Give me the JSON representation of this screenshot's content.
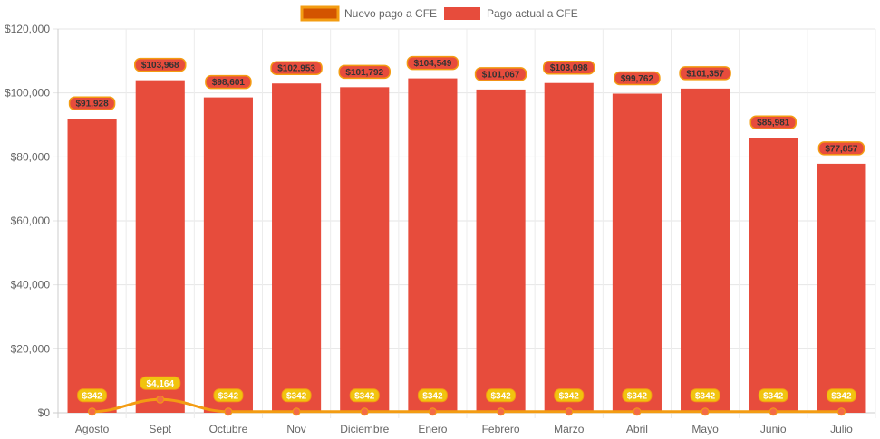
{
  "chart_data": {
    "type": "bar",
    "categories": [
      "Agosto",
      "Sept",
      "Octubre",
      "Nov",
      "Diciembre",
      "Enero",
      "Febrero",
      "Marzo",
      "Abril",
      "Mayo",
      "Junio",
      "Julio"
    ],
    "series": [
      {
        "name": "Nuevo pago a CFE",
        "type": "line",
        "color": "#f39c12",
        "fill": "#d35400",
        "values": [
          342,
          4164,
          342,
          342,
          342,
          342,
          342,
          342,
          342,
          342,
          342,
          342
        ],
        "labels": [
          "$342",
          "$4,164",
          "$342",
          "$342",
          "$342",
          "$342",
          "$342",
          "$342",
          "$342",
          "$342",
          "$342",
          "$342"
        ]
      },
      {
        "name": "Pago actual a CFE",
        "type": "bar",
        "color": "#e74c3c",
        "values": [
          91928,
          103968,
          98601,
          102953,
          101792,
          104549,
          101067,
          103098,
          99762,
          101357,
          85981,
          77857
        ],
        "labels": [
          "$91,928",
          "$103,968",
          "$98,601",
          "$102,953",
          "$101,792",
          "$104,549",
          "$101,067",
          "$103,098",
          "$99,762",
          "$101,357",
          "$85,981",
          "$77,857"
        ]
      }
    ],
    "yticks": [
      "$0",
      "$20,000",
      "$40,000",
      "$60,000",
      "$80,000",
      "$100,000",
      "$120,000"
    ],
    "ylim": [
      0,
      120000
    ],
    "grid": true,
    "legend_position": "top-center",
    "title": "",
    "xlabel": "",
    "ylabel": ""
  }
}
